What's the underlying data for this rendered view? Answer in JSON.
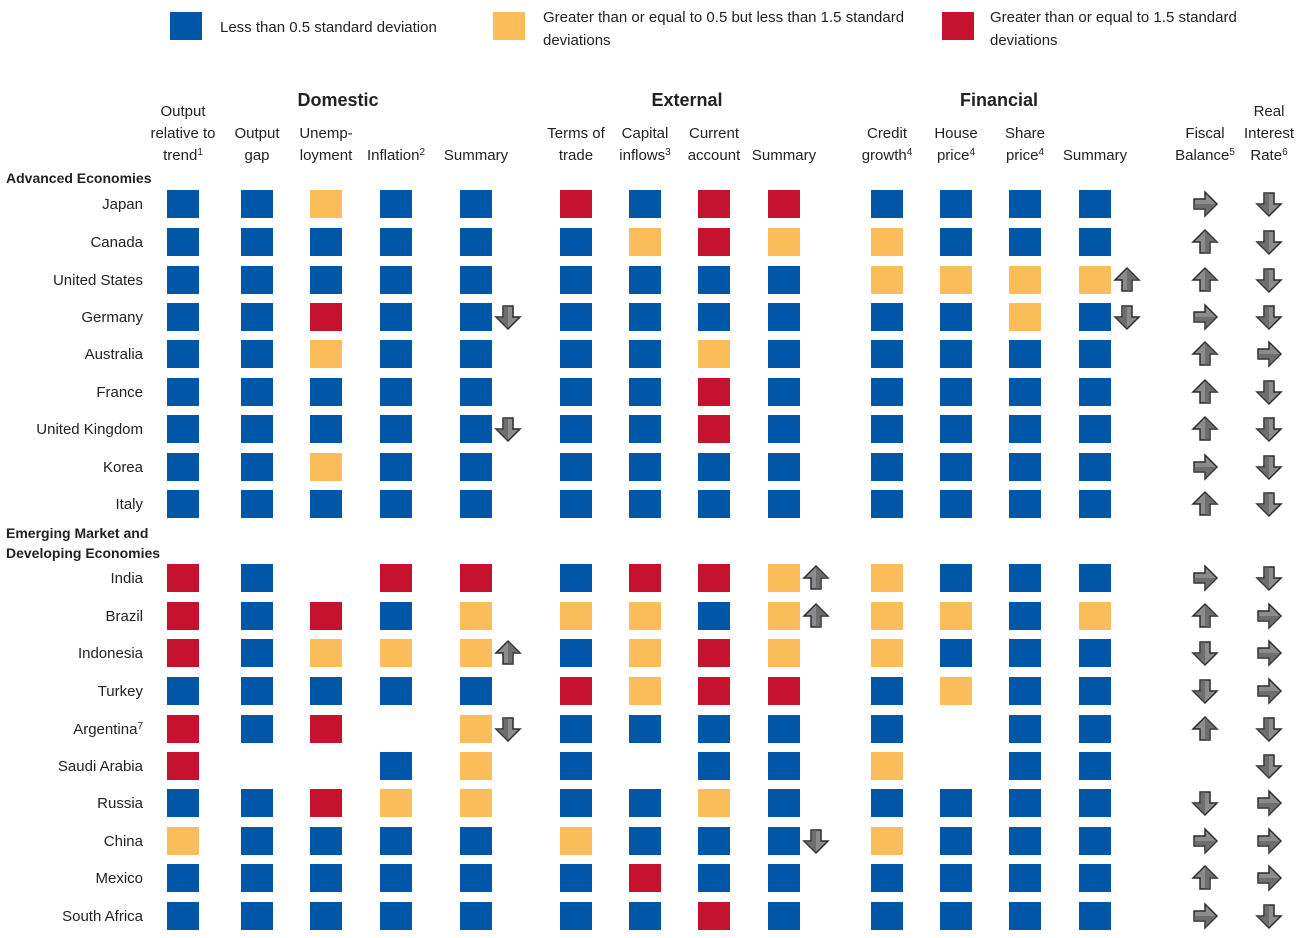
{
  "legend": [
    {
      "color": "#0057a8",
      "lines": [
        "Less than 0.5 standard deviation"
      ]
    },
    {
      "color": "#fbbd59",
      "lines": [
        "Greater than or equal to 0.5 but less than 1.5 standard",
        "deviations"
      ]
    },
    {
      "color": "#c4122f",
      "lines": [
        "Greater than or equal to 1.5 standard",
        "deviations"
      ]
    }
  ],
  "groups": [
    "Domestic",
    "External",
    "Financial"
  ],
  "columns": [
    {
      "lines": [
        "Output",
        "relative to",
        "trend"
      ],
      "note": "1"
    },
    {
      "lines": [
        "Output",
        "gap"
      ]
    },
    {
      "lines": [
        "Unemp-",
        "loyment"
      ]
    },
    {
      "lines": [
        "Inflation"
      ],
      "note": "2"
    },
    {
      "lines": [
        "Summary"
      ]
    },
    {
      "lines": [
        "Terms of",
        "trade"
      ]
    },
    {
      "lines": [
        "Capital",
        "inflows"
      ],
      "note": "3"
    },
    {
      "lines": [
        "Current",
        "account"
      ]
    },
    {
      "lines": [
        "Summary"
      ]
    },
    {
      "lines": [
        "Credit",
        "growth"
      ],
      "note": "4"
    },
    {
      "lines": [
        "House",
        "price"
      ],
      "note": "4"
    },
    {
      "lines": [
        "Share",
        "price"
      ],
      "note": "4"
    },
    {
      "lines": [
        "Summary"
      ]
    },
    {
      "lines": [
        "Fiscal",
        "Balance"
      ],
      "note": "5"
    },
    {
      "lines": [
        "Real",
        "Interest",
        "Rate"
      ],
      "note": "6"
    }
  ],
  "sections": [
    {
      "lines": [
        "Advanced Economies"
      ],
      "rows": [
        {
          "name": "Japan",
          "levels": [
            0,
            0,
            1,
            0,
            0,
            2,
            0,
            2,
            2,
            0,
            0,
            0,
            0
          ],
          "trend": [
            null,
            null,
            null,
            "right",
            "down"
          ]
        },
        {
          "name": "Canada",
          "levels": [
            0,
            0,
            0,
            0,
            0,
            0,
            1,
            2,
            1,
            1,
            0,
            0,
            0
          ],
          "trend": [
            null,
            null,
            null,
            "up",
            "down"
          ]
        },
        {
          "name": "United States",
          "levels": [
            0,
            0,
            0,
            0,
            0,
            0,
            0,
            0,
            0,
            1,
            1,
            1,
            1
          ],
          "trend": [
            null,
            null,
            "up",
            "up",
            "down"
          ]
        },
        {
          "name": "Germany",
          "levels": [
            0,
            0,
            2,
            0,
            0,
            0,
            0,
            0,
            0,
            0,
            0,
            1,
            0
          ],
          "trend": [
            "down",
            null,
            "down",
            "right",
            "down"
          ]
        },
        {
          "name": "Australia",
          "levels": [
            0,
            0,
            1,
            0,
            0,
            0,
            0,
            1,
            0,
            0,
            0,
            0,
            0
          ],
          "trend": [
            null,
            null,
            null,
            "up",
            "right"
          ]
        },
        {
          "name": "France",
          "levels": [
            0,
            0,
            0,
            0,
            0,
            0,
            0,
            2,
            0,
            0,
            0,
            0,
            0
          ],
          "trend": [
            null,
            null,
            null,
            "up",
            "down"
          ]
        },
        {
          "name": "United Kingdom",
          "levels": [
            0,
            0,
            0,
            0,
            0,
            0,
            0,
            2,
            0,
            0,
            0,
            0,
            0
          ],
          "trend": [
            "down",
            null,
            null,
            "up",
            "down"
          ]
        },
        {
          "name": "Korea",
          "levels": [
            0,
            0,
            1,
            0,
            0,
            0,
            0,
            0,
            0,
            0,
            0,
            0,
            0
          ],
          "trend": [
            null,
            null,
            null,
            "right",
            "down"
          ]
        },
        {
          "name": "Italy",
          "levels": [
            0,
            0,
            0,
            0,
            0,
            0,
            0,
            0,
            0,
            0,
            0,
            0,
            0
          ],
          "trend": [
            null,
            null,
            null,
            "up",
            "down"
          ]
        }
      ]
    },
    {
      "lines": [
        "Emerging Market and",
        "Developing Economies"
      ],
      "rows": [
        {
          "name": "India",
          "levels": [
            2,
            0,
            null,
            2,
            2,
            0,
            2,
            2,
            1,
            1,
            0,
            0,
            0
          ],
          "trend": [
            null,
            "up",
            null,
            "right",
            "down"
          ]
        },
        {
          "name": "Brazil",
          "levels": [
            2,
            0,
            2,
            0,
            1,
            1,
            1,
            0,
            1,
            1,
            1,
            0,
            1
          ],
          "trend": [
            null,
            "up",
            null,
            "up",
            "right"
          ]
        },
        {
          "name": "Indonesia",
          "levels": [
            2,
            0,
            1,
            1,
            1,
            0,
            1,
            2,
            1,
            1,
            0,
            0,
            0
          ],
          "trend": [
            "up",
            null,
            null,
            "down",
            "right"
          ]
        },
        {
          "name": "Turkey",
          "levels": [
            0,
            0,
            0,
            0,
            0,
            2,
            1,
            2,
            2,
            0,
            1,
            0,
            0
          ],
          "trend": [
            null,
            null,
            null,
            "down",
            "right"
          ]
        },
        {
          "name": "Argentina",
          "note": "7",
          "levels": [
            2,
            0,
            2,
            null,
            1,
            0,
            0,
            0,
            0,
            0,
            null,
            0,
            0
          ],
          "trend": [
            "down",
            null,
            null,
            "up",
            "down"
          ]
        },
        {
          "name": "Saudi Arabia",
          "levels": [
            2,
            null,
            null,
            0,
            1,
            0,
            null,
            0,
            0,
            1,
            null,
            0,
            0
          ],
          "trend": [
            null,
            null,
            null,
            null,
            "down"
          ]
        },
        {
          "name": "Russia",
          "levels": [
            0,
            0,
            2,
            1,
            1,
            0,
            0,
            1,
            0,
            0,
            0,
            0,
            0
          ],
          "trend": [
            null,
            null,
            null,
            "down",
            "right"
          ]
        },
        {
          "name": "China",
          "levels": [
            1,
            0,
            0,
            0,
            0,
            1,
            0,
            0,
            0,
            1,
            0,
            0,
            0
          ],
          "trend": [
            null,
            "down",
            null,
            "right",
            "right"
          ]
        },
        {
          "name": "Mexico",
          "levels": [
            0,
            0,
            0,
            0,
            0,
            0,
            2,
            0,
            0,
            0,
            0,
            0,
            0
          ],
          "trend": [
            null,
            null,
            null,
            "up",
            "right"
          ]
        },
        {
          "name": "South Africa",
          "levels": [
            0,
            0,
            0,
            0,
            0,
            0,
            0,
            2,
            0,
            0,
            0,
            0,
            0
          ],
          "trend": [
            null,
            null,
            null,
            "right",
            "down"
          ]
        }
      ]
    }
  ]
}
